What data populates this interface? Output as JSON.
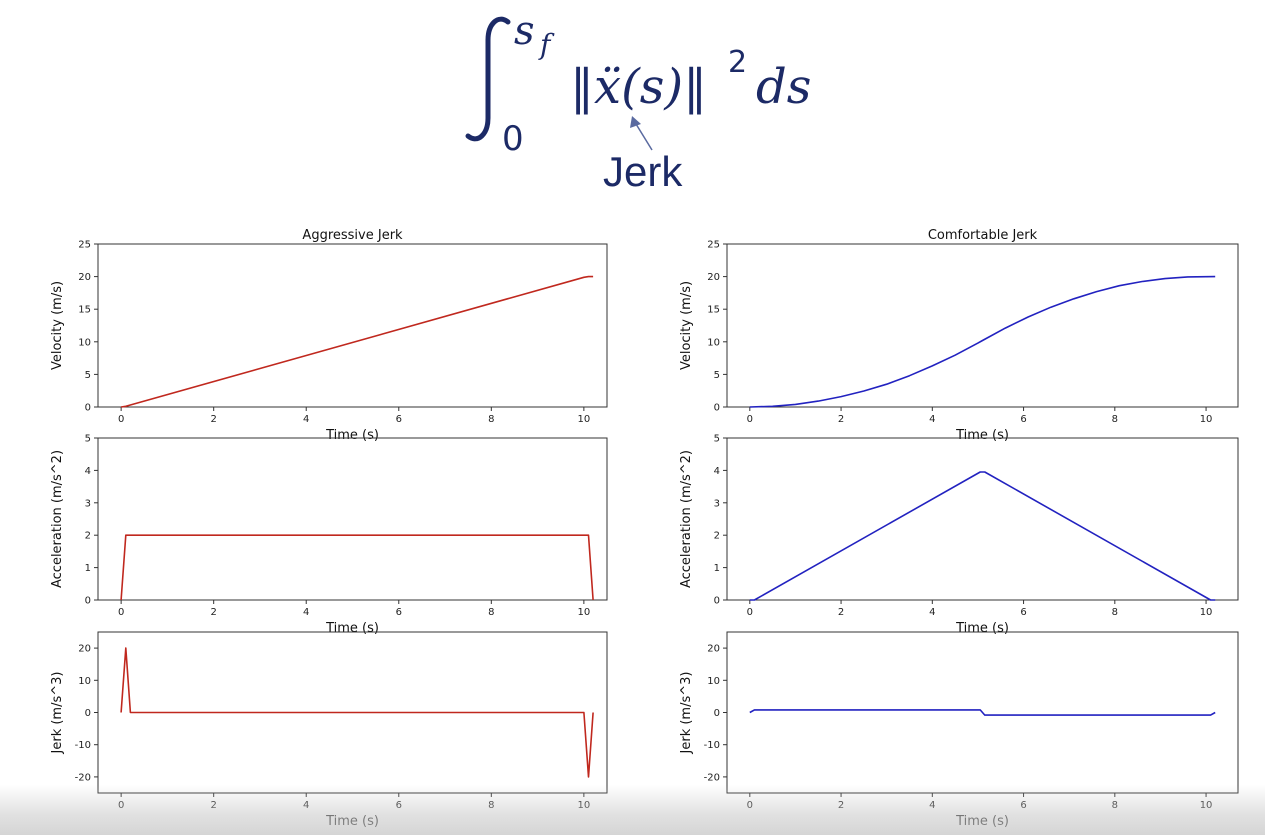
{
  "formula": {
    "upper_limit": "s",
    "upper_limit_sub": "f",
    "lower_limit": "0",
    "expression": "‖ẍ(s)‖",
    "exponent": "2",
    "differential": "ds",
    "annotation": "Jerk",
    "color": "#1c2a66"
  },
  "colors": {
    "aggressive": "#c0281e",
    "comfortable": "#2222c0",
    "axis": "#333333"
  },
  "chart_data": [
    {
      "id": "agg-vel",
      "type": "line",
      "title": "Aggressive Jerk",
      "xlabel": "Time (s)",
      "ylabel": "Velocity (m/s)",
      "xlim": [
        -0.5,
        10.5
      ],
      "ylim": [
        0,
        25
      ],
      "xticks": [
        0,
        2,
        4,
        6,
        8,
        10
      ],
      "yticks": [
        0,
        5,
        10,
        15,
        20,
        25
      ],
      "series": [
        {
          "color": "#c0281e",
          "x": [
            0,
            0.1,
            10.0,
            10.1,
            10.2
          ],
          "y": [
            0,
            0.1,
            19.9,
            20.0,
            20.0
          ]
        }
      ]
    },
    {
      "id": "agg-acc",
      "type": "line",
      "title": "",
      "xlabel": "Time (s)",
      "ylabel": "Acceleration (m/s^2)",
      "xlim": [
        -0.5,
        10.5
      ],
      "ylim": [
        0,
        5
      ],
      "xticks": [
        0,
        2,
        4,
        6,
        8,
        10
      ],
      "yticks": [
        0,
        1,
        2,
        3,
        4,
        5
      ],
      "series": [
        {
          "color": "#c0281e",
          "x": [
            0,
            0.1,
            10.1,
            10.2
          ],
          "y": [
            0,
            2,
            2,
            0
          ]
        }
      ]
    },
    {
      "id": "agg-jerk",
      "type": "line",
      "title": "",
      "xlabel": "Time (s)",
      "ylabel": "Jerk (m/s^3)",
      "xlim": [
        -0.5,
        10.5
      ],
      "ylim": [
        -25,
        25
      ],
      "xticks": [
        0,
        2,
        4,
        6,
        8,
        10
      ],
      "yticks": [
        -20,
        -10,
        0,
        10,
        20
      ],
      "series": [
        {
          "color": "#c0281e",
          "x": [
            0,
            0.1,
            0.2,
            10.0,
            10.1,
            10.2
          ],
          "y": [
            0,
            20,
            0,
            0,
            -20,
            0
          ]
        }
      ]
    },
    {
      "id": "com-vel",
      "type": "line",
      "title": "Comfortable Jerk",
      "xlabel": "Time (s)",
      "ylabel": "Velocity (m/s)",
      "xlim": [
        -0.5,
        10.7
      ],
      "ylim": [
        0,
        25
      ],
      "xticks": [
        0,
        2,
        4,
        6,
        8,
        10
      ],
      "yticks": [
        0,
        5,
        10,
        15,
        20,
        25
      ],
      "series": [
        {
          "color": "#2222c0",
          "x": [
            0,
            0.5,
            1,
            1.5,
            2,
            2.5,
            3,
            3.5,
            4,
            4.5,
            5,
            5.1,
            5.6,
            6.1,
            6.6,
            7.1,
            7.6,
            8.1,
            8.6,
            9.1,
            9.6,
            10.2
          ],
          "y": [
            0,
            0.1,
            0.4,
            0.9,
            1.6,
            2.45,
            3.5,
            4.8,
            6.3,
            7.95,
            9.8,
            10.2,
            12.1,
            13.8,
            15.3,
            16.6,
            17.7,
            18.6,
            19.25,
            19.7,
            19.95,
            20.0
          ]
        }
      ]
    },
    {
      "id": "com-acc",
      "type": "line",
      "title": "",
      "xlabel": "Time (s)",
      "ylabel": "Acceleration (m/s^2)",
      "xlim": [
        -0.5,
        10.7
      ],
      "ylim": [
        0,
        5
      ],
      "xticks": [
        0,
        2,
        4,
        6,
        8,
        10
      ],
      "yticks": [
        0,
        1,
        2,
        3,
        4,
        5
      ],
      "series": [
        {
          "color": "#2222c0",
          "x": [
            0,
            0.1,
            5.05,
            5.15,
            10.1,
            10.2
          ],
          "y": [
            0,
            0,
            3.95,
            3.95,
            0,
            0
          ]
        }
      ]
    },
    {
      "id": "com-jerk",
      "type": "line",
      "title": "",
      "xlabel": "Time (s)",
      "ylabel": "Jerk (m/s^3)",
      "xlim": [
        -0.5,
        10.7
      ],
      "ylim": [
        -25,
        25
      ],
      "xticks": [
        0,
        2,
        4,
        6,
        8,
        10
      ],
      "yticks": [
        -20,
        -10,
        0,
        10,
        20
      ],
      "series": [
        {
          "color": "#2222c0",
          "x": [
            0,
            0.1,
            5.05,
            5.15,
            10.1,
            10.2
          ],
          "y": [
            0,
            0.8,
            0.8,
            -0.8,
            -0.8,
            0
          ]
        }
      ]
    }
  ]
}
